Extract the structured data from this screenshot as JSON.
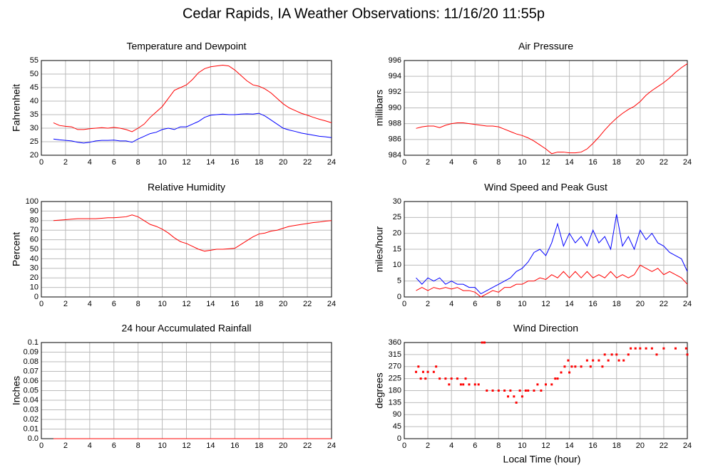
{
  "title": "Cedar Rapids, IA Weather Observations: 11/16/20 11:55p",
  "xlabel": "Local Time (hour)",
  "chart_data": [
    {
      "type": "line",
      "title": "Temperature and Dewpoint",
      "ylabel": "Fahrenheit",
      "x": [
        1,
        1.5,
        2,
        2.5,
        3,
        3.5,
        4,
        4.5,
        5,
        5.5,
        6,
        6.5,
        7,
        7.5,
        8,
        8.5,
        9,
        9.5,
        10,
        10.5,
        11,
        11.5,
        12,
        12.5,
        13,
        13.5,
        14,
        14.5,
        15,
        15.5,
        16,
        16.5,
        17,
        17.5,
        18,
        18.5,
        19,
        19.5,
        20,
        20.5,
        21,
        21.5,
        22,
        22.5,
        23,
        23.5,
        24
      ],
      "series": [
        {
          "color": "#ff0000",
          "values": [
            32,
            31,
            30.7,
            30.5,
            29.5,
            29.5,
            29.8,
            30,
            30.2,
            30,
            30.3,
            30,
            29.5,
            28.7,
            30,
            31.5,
            34,
            36,
            38,
            41,
            44,
            45,
            46,
            48,
            50.5,
            52,
            52.7,
            53,
            53.3,
            53,
            51.5,
            49.5,
            47.5,
            46,
            45.5,
            44.5,
            43,
            41,
            39,
            37.5,
            36.5,
            35.5,
            34.8,
            34,
            33.3,
            32.7,
            32
          ]
        },
        {
          "color": "#0000ff",
          "values": [
            26,
            25.7,
            25.5,
            25.3,
            24.8,
            24.5,
            24.8,
            25.3,
            25.5,
            25.5,
            25.6,
            25.3,
            25.3,
            24.8,
            26,
            27,
            28,
            28.5,
            29.5,
            30,
            29.5,
            30.5,
            30.5,
            31.5,
            32.5,
            34,
            34.8,
            35,
            35.2,
            35,
            35,
            35.2,
            35.3,
            35.2,
            35.5,
            34.5,
            33,
            31.5,
            30,
            29.3,
            28.8,
            28.2,
            27.8,
            27.4,
            27,
            26.8,
            26.5
          ]
        }
      ],
      "xlim": [
        0,
        24
      ],
      "xticks": [
        0,
        2,
        4,
        6,
        8,
        10,
        12,
        14,
        16,
        18,
        20,
        22,
        24
      ],
      "ylim": [
        20,
        55
      ],
      "yticks": [
        20,
        25,
        30,
        35,
        40,
        45,
        50,
        55
      ],
      "grid": true
    },
    {
      "type": "line",
      "title": "Air Pressure",
      "ylabel": "millibars",
      "x": [
        1,
        1.5,
        2,
        2.5,
        3,
        3.5,
        4,
        4.5,
        5,
        5.5,
        6,
        6.5,
        7,
        7.5,
        8,
        8.5,
        9,
        9.5,
        10,
        10.5,
        11,
        11.5,
        12,
        12.5,
        13,
        13.5,
        14,
        14.5,
        15,
        15.5,
        16,
        16.5,
        17,
        17.5,
        18,
        18.5,
        19,
        19.5,
        20,
        20.5,
        21,
        21.5,
        22,
        22.5,
        23,
        23.5,
        24
      ],
      "series": [
        {
          "color": "#ff0000",
          "values": [
            987.4,
            987.6,
            987.7,
            987.7,
            987.5,
            987.8,
            988,
            988.1,
            988.1,
            988,
            987.9,
            987.8,
            987.7,
            987.7,
            987.6,
            987.3,
            987,
            986.7,
            986.5,
            986.2,
            985.8,
            985.3,
            984.8,
            984.2,
            984.4,
            984.4,
            984.3,
            984.3,
            984.4,
            984.8,
            985.5,
            986.3,
            987.2,
            988,
            988.7,
            989.3,
            989.8,
            990.2,
            990.8,
            991.6,
            992.2,
            992.7,
            993.2,
            993.8,
            994.5,
            995.1,
            995.6
          ]
        }
      ],
      "xlim": [
        0,
        24
      ],
      "xticks": [
        0,
        2,
        4,
        6,
        8,
        10,
        12,
        14,
        16,
        18,
        20,
        22,
        24
      ],
      "ylim": [
        984,
        996
      ],
      "yticks": [
        984,
        986,
        988,
        990,
        992,
        994,
        996
      ],
      "grid": true
    },
    {
      "type": "line",
      "title": "Relative Humidity",
      "ylabel": "Percent",
      "x": [
        1,
        1.5,
        2,
        2.5,
        3,
        3.5,
        4,
        4.5,
        5,
        5.5,
        6,
        6.5,
        7,
        7.5,
        8,
        8.5,
        9,
        9.5,
        10,
        10.5,
        11,
        11.5,
        12,
        12.5,
        13,
        13.5,
        14,
        14.5,
        15,
        15.5,
        16,
        16.5,
        17,
        17.5,
        18,
        18.5,
        19,
        19.5,
        20,
        20.5,
        21,
        21.5,
        22,
        22.5,
        23,
        23.5,
        24
      ],
      "series": [
        {
          "color": "#ff0000",
          "values": [
            80,
            80.5,
            81,
            81.5,
            82,
            82,
            82,
            82,
            82.5,
            83,
            83,
            83.5,
            84,
            86,
            84,
            80,
            76,
            74,
            71,
            67,
            62,
            58,
            56,
            53,
            50,
            48,
            49,
            50,
            50,
            50.5,
            51,
            55,
            59,
            63,
            66,
            67,
            69,
            70,
            72,
            74,
            75,
            76,
            77,
            78,
            78.5,
            79.5,
            80
          ]
        }
      ],
      "xlim": [
        0,
        24
      ],
      "xticks": [
        0,
        2,
        4,
        6,
        8,
        10,
        12,
        14,
        16,
        18,
        20,
        22,
        24
      ],
      "ylim": [
        0,
        100
      ],
      "yticks": [
        0,
        10,
        20,
        30,
        40,
        50,
        60,
        70,
        80,
        90,
        100
      ],
      "grid": true
    },
    {
      "type": "line",
      "title": "Wind Speed and Peak Gust",
      "ylabel": "miles/hour",
      "x": [
        1,
        1.5,
        2,
        2.5,
        3,
        3.5,
        4,
        4.5,
        5,
        5.5,
        6,
        6.5,
        7,
        7.5,
        8,
        8.5,
        9,
        9.5,
        10,
        10.5,
        11,
        11.5,
        12,
        12.5,
        13,
        13.5,
        14,
        14.5,
        15,
        15.5,
        16,
        16.5,
        17,
        17.5,
        18,
        18.5,
        19,
        19.5,
        20,
        20.5,
        21,
        21.5,
        22,
        22.5,
        23,
        23.5,
        24
      ],
      "series": [
        {
          "color": "#0000ff",
          "values": [
            6,
            4,
            6,
            5,
            6,
            4,
            5,
            4,
            4,
            3,
            3,
            1,
            2,
            3,
            4,
            5,
            6,
            8,
            9,
            11,
            14,
            15,
            13,
            17,
            23,
            16,
            20,
            17,
            19,
            16,
            21,
            17,
            19,
            15,
            26,
            16,
            19,
            15,
            21,
            18,
            20,
            17,
            16,
            14,
            13,
            12,
            8
          ]
        },
        {
          "color": "#ff0000",
          "values": [
            2,
            3,
            2,
            3,
            2.5,
            3,
            2.5,
            3,
            2,
            2,
            1.5,
            0,
            1,
            2,
            1.5,
            3,
            3,
            4,
            4,
            5,
            5,
            6,
            5.5,
            7,
            6,
            8,
            6,
            8,
            6,
            8,
            6,
            7,
            6,
            8,
            6,
            7,
            6,
            7,
            10,
            9,
            8,
            9,
            7,
            8,
            7,
            6,
            4
          ]
        }
      ],
      "xlim": [
        0,
        24
      ],
      "xticks": [
        0,
        2,
        4,
        6,
        8,
        10,
        12,
        14,
        16,
        18,
        20,
        22,
        24
      ],
      "ylim": [
        0,
        30
      ],
      "yticks": [
        0,
        5,
        10,
        15,
        20,
        25,
        30
      ],
      "grid": true
    },
    {
      "type": "line",
      "title": "24 hour Accumulated Rainfall",
      "ylabel": "Inches",
      "x": [
        1,
        24
      ],
      "series": [
        {
          "color": "#ff0000",
          "values": [
            0,
            0
          ]
        }
      ],
      "xlim": [
        0,
        24
      ],
      "xticks": [
        0,
        2,
        4,
        6,
        8,
        10,
        12,
        14,
        16,
        18,
        20,
        22,
        24
      ],
      "ylim": [
        0,
        0.1
      ],
      "yticks": [
        {
          "value": 0,
          "label": "0.0"
        },
        0.01,
        0.02,
        0.03,
        0.04,
        0.05,
        0.06,
        0.07,
        0.08,
        0.09,
        0.1
      ],
      "grid": true
    },
    {
      "type": "scatter",
      "title": "Wind Direction",
      "ylabel": "degrees",
      "x": [
        1,
        1.2,
        1.4,
        1.6,
        1.8,
        2,
        2.5,
        2.7,
        3,
        3.5,
        3.8,
        4,
        4.5,
        4.8,
        5,
        5.2,
        5.5,
        6,
        6.3,
        6.6,
        6.8,
        7,
        7.5,
        8,
        8.5,
        8.8,
        9,
        9.3,
        9.5,
        9.8,
        10,
        10.3,
        10.5,
        11,
        11.3,
        11.6,
        12,
        12.5,
        12.8,
        13,
        13.3,
        13.6,
        13.9,
        14,
        14.2,
        14.5,
        15,
        15.5,
        15.8,
        16,
        16.5,
        16.8,
        17,
        17.3,
        17.6,
        18,
        18.2,
        18.6,
        19,
        19.2,
        19.6,
        20,
        20.5,
        21,
        21.4,
        22,
        23,
        23.9,
        24
      ],
      "series": [
        {
          "color": "#ff0000",
          "values": [
            250,
            270,
            225,
            250,
            225,
            250,
            250,
            270,
            225,
            225,
            203,
            225,
            225,
            203,
            203,
            225,
            203,
            203,
            203,
            360,
            360,
            180,
            180,
            180,
            180,
            158,
            180,
            158,
            135,
            180,
            158,
            180,
            180,
            180,
            203,
            180,
            203,
            203,
            225,
            225,
            248,
            270,
            293,
            248,
            270,
            270,
            270,
            293,
            270,
            293,
            293,
            270,
            315,
            293,
            315,
            315,
            293,
            293,
            315,
            338,
            338,
            338,
            338,
            338,
            315,
            338,
            338,
            338,
            315
          ]
        }
      ],
      "xlim": [
        0,
        24
      ],
      "xticks": [
        0,
        2,
        4,
        6,
        8,
        10,
        12,
        14,
        16,
        18,
        20,
        22,
        24
      ],
      "ylim": [
        0,
        360
      ],
      "yticks": [
        0,
        45,
        90,
        135,
        180,
        225,
        270,
        315,
        360
      ],
      "grid": true
    }
  ]
}
